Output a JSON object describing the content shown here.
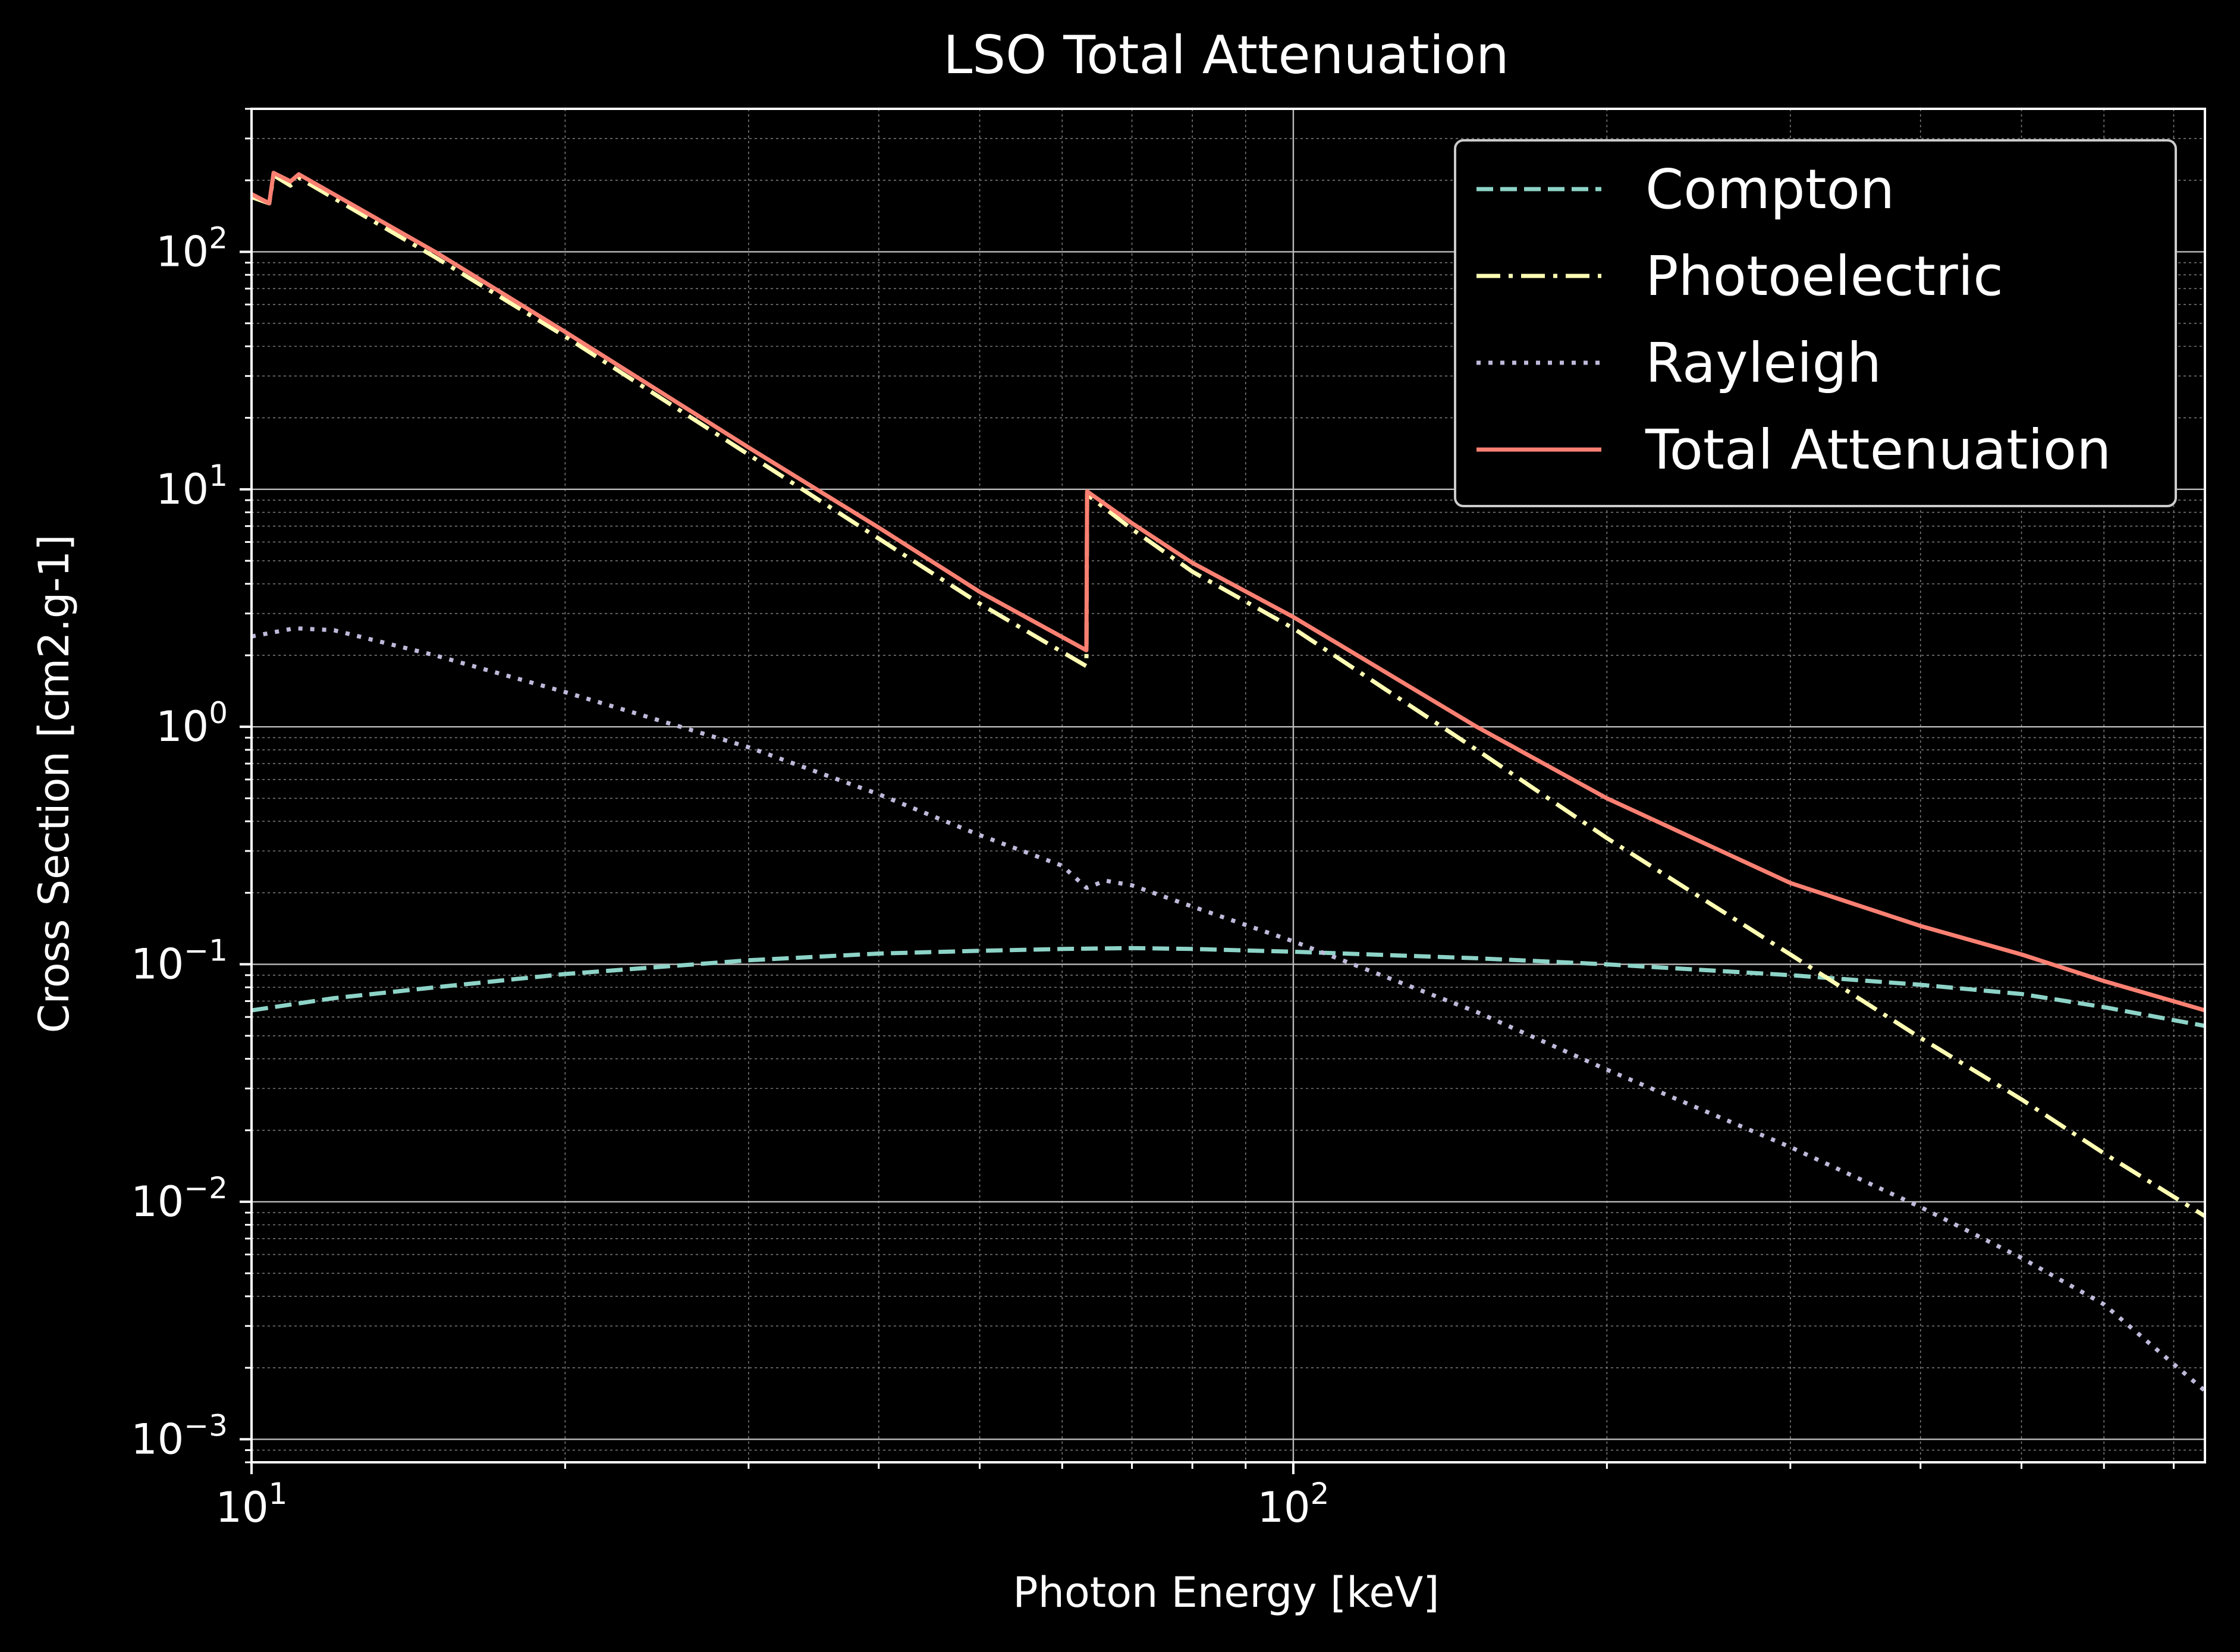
{
  "chart_data": {
    "type": "line",
    "title": "LSO Total Attenuation",
    "xlabel": "Photon Energy [keV]",
    "ylabel": "Cross Section [cm2.g-1]",
    "xscale": "log",
    "yscale": "log",
    "xlim": [
      10,
      750
    ],
    "ylim": [
      0.0008,
      400
    ],
    "x_ticks": [
      {
        "value": 10,
        "base": "10",
        "exp": "1"
      },
      {
        "value": 100,
        "base": "10",
        "exp": "2"
      }
    ],
    "y_ticks": [
      {
        "value": 0.001,
        "base": "10",
        "exp": "−3"
      },
      {
        "value": 0.01,
        "base": "10",
        "exp": "−2"
      },
      {
        "value": 0.1,
        "base": "10",
        "exp": "−1"
      },
      {
        "value": 1,
        "base": "10",
        "exp": "0"
      },
      {
        "value": 10,
        "base": "10",
        "exp": "1"
      },
      {
        "value": 100,
        "base": "10",
        "exp": "2"
      }
    ],
    "grid": "major and minor, both axes",
    "legend_position": "top-right",
    "background": "#000000",
    "series": [
      {
        "name": "Compton",
        "color": "#8dd3c7",
        "style": "dashed",
        "points": [
          [
            10,
            0.064
          ],
          [
            12,
            0.072
          ],
          [
            15,
            0.08
          ],
          [
            20,
            0.091
          ],
          [
            30,
            0.104
          ],
          [
            40,
            0.111
          ],
          [
            50,
            0.114
          ],
          [
            60,
            0.116
          ],
          [
            70,
            0.117
          ],
          [
            80,
            0.116
          ],
          [
            100,
            0.113
          ],
          [
            150,
            0.106
          ],
          [
            200,
            0.1
          ],
          [
            300,
            0.09
          ],
          [
            400,
            0.082
          ],
          [
            500,
            0.075
          ],
          [
            600,
            0.066
          ],
          [
            750,
            0.055
          ]
        ]
      },
      {
        "name": "Photoelectric",
        "color": "#ffffb3",
        "style": "dashdot",
        "points": [
          [
            10,
            170
          ],
          [
            10.4,
            160
          ],
          [
            10.5,
            210
          ],
          [
            10.9,
            190
          ],
          [
            11.1,
            205
          ],
          [
            15,
            95
          ],
          [
            20,
            44
          ],
          [
            30,
            14
          ],
          [
            40,
            6.2
          ],
          [
            50,
            3.3
          ],
          [
            63.3,
            1.8
          ],
          [
            63.4,
            9.5
          ],
          [
            70,
            6.8
          ],
          [
            80,
            4.5
          ],
          [
            100,
            2.6
          ],
          [
            150,
            0.8
          ],
          [
            200,
            0.34
          ],
          [
            300,
            0.11
          ],
          [
            400,
            0.049
          ],
          [
            500,
            0.027
          ],
          [
            600,
            0.016
          ],
          [
            750,
            0.0087
          ]
        ]
      },
      {
        "name": "Rayleigh",
        "color": "#bebada",
        "style": "dotted",
        "points": [
          [
            10,
            2.4
          ],
          [
            11,
            2.6
          ],
          [
            12,
            2.55
          ],
          [
            15,
            2.0
          ],
          [
            20,
            1.4
          ],
          [
            30,
            0.82
          ],
          [
            40,
            0.52
          ],
          [
            50,
            0.35
          ],
          [
            60,
            0.26
          ],
          [
            63.3,
            0.21
          ],
          [
            63.4,
            0.21
          ],
          [
            66,
            0.225
          ],
          [
            70,
            0.215
          ],
          [
            80,
            0.175
          ],
          [
            100,
            0.125
          ],
          [
            150,
            0.063
          ],
          [
            200,
            0.036
          ],
          [
            300,
            0.017
          ],
          [
            400,
            0.0095
          ],
          [
            500,
            0.0058
          ],
          [
            600,
            0.0037
          ],
          [
            750,
            0.0016
          ]
        ]
      },
      {
        "name": "Total Attenuation",
        "color": "#fb8072",
        "style": "solid",
        "points": [
          [
            10,
            175
          ],
          [
            10.4,
            160
          ],
          [
            10.5,
            215
          ],
          [
            10.9,
            198
          ],
          [
            11.1,
            212
          ],
          [
            15,
            100
          ],
          [
            20,
            46
          ],
          [
            30,
            15
          ],
          [
            40,
            6.9
          ],
          [
            50,
            3.7
          ],
          [
            63.3,
            2.1
          ],
          [
            63.4,
            9.8
          ],
          [
            70,
            7.2
          ],
          [
            80,
            4.9
          ],
          [
            100,
            2.9
          ],
          [
            150,
            1.0
          ],
          [
            200,
            0.5
          ],
          [
            300,
            0.22
          ],
          [
            400,
            0.145
          ],
          [
            500,
            0.11
          ],
          [
            600,
            0.085
          ],
          [
            750,
            0.064
          ]
        ]
      }
    ]
  }
}
